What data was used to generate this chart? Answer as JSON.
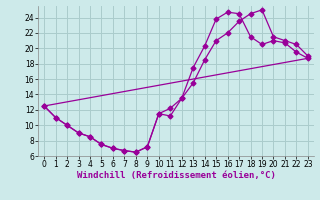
{
  "xlabel": "Windchill (Refroidissement éolien,°C)",
  "bg_color": "#cdeaea",
  "grid_color": "#aacccc",
  "line_color": "#990099",
  "xlim": [
    -0.5,
    23.5
  ],
  "ylim": [
    6,
    25.5
  ],
  "xticks": [
    0,
    1,
    2,
    3,
    4,
    5,
    6,
    7,
    8,
    9,
    10,
    11,
    12,
    13,
    14,
    15,
    16,
    17,
    18,
    19,
    20,
    21,
    22,
    23
  ],
  "yticks": [
    6,
    8,
    10,
    12,
    14,
    16,
    18,
    20,
    22,
    24
  ],
  "curve1_x": [
    0,
    1,
    2,
    3,
    4,
    5,
    6,
    7,
    8,
    9,
    10,
    11,
    12,
    13,
    14,
    15,
    16,
    17,
    18,
    19,
    20,
    21,
    22,
    23
  ],
  "curve1_y": [
    12.5,
    11.0,
    10.0,
    9.0,
    8.5,
    7.5,
    7.0,
    6.7,
    6.5,
    7.2,
    11.5,
    11.2,
    13.5,
    17.5,
    20.3,
    23.8,
    24.7,
    24.5,
    21.5,
    20.5,
    21.0,
    20.7,
    19.5,
    18.7
  ],
  "curve2_x": [
    0,
    1,
    2,
    3,
    4,
    5,
    6,
    7,
    8,
    9,
    10,
    11,
    12,
    13,
    14,
    15,
    16,
    17,
    18,
    19,
    20,
    21,
    22,
    23
  ],
  "curve2_y": [
    12.5,
    11.0,
    10.0,
    9.0,
    8.5,
    7.5,
    7.0,
    6.7,
    6.5,
    7.2,
    11.5,
    12.2,
    13.5,
    15.5,
    18.5,
    21.0,
    22.0,
    23.5,
    24.5,
    25.0,
    21.5,
    21.0,
    20.5,
    19.0
  ],
  "line3_x": [
    0,
    23
  ],
  "line3_y": [
    12.5,
    18.7
  ],
  "marker": "D",
  "markersize": 2.5,
  "linewidth": 0.9,
  "tick_fontsize": 5.5,
  "xlabel_fontsize": 6.5,
  "spine_color": "#888888"
}
